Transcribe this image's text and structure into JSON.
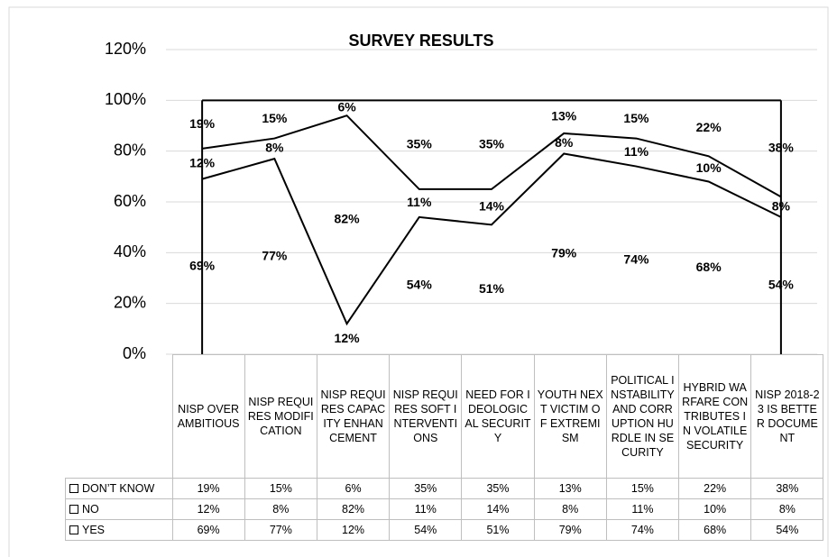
{
  "chart_data": {
    "type": "stacked_area",
    "title": "SURVEY RESULTS",
    "categories": [
      "NISP OVER AMBITIOUS",
      "NISP REQUIRES MODIFICATION",
      "NISP REQUIRES CAPACITY ENHANCEMENT",
      "NISP REQUIRES SOFT INTERVENTIONS",
      "NEED FOR IDEOLOGICAL SECURITY",
      "YOUTH NEXT VICTIM OF EXTREMISM",
      "POLITICAL INSTABILITY AND CORRUPTION HURDLE IN SECURITY",
      "HYBRID WARFARE CONTRIBUTES IN VOLATILE SECURITY",
      "NISP 2018-23 IS BETTER DOCUMENT"
    ],
    "series": [
      {
        "name": "YES",
        "color": "#000000",
        "values": [
          69,
          77,
          12,
          54,
          51,
          79,
          74,
          68,
          54
        ],
        "value_labels": [
          "69%",
          "77%",
          "12%",
          "54%",
          "51%",
          "79%",
          "74%",
          "68%",
          "54%"
        ]
      },
      {
        "name": "NO",
        "color": "#000000",
        "values": [
          12,
          8,
          82,
          11,
          14,
          8,
          11,
          10,
          8
        ],
        "value_labels": [
          "12%",
          "8%",
          "82%",
          "11%",
          "14%",
          "8%",
          "11%",
          "10%",
          "8%"
        ]
      },
      {
        "name": "DON’T KNOW",
        "color": "#000000",
        "values": [
          19,
          15,
          6,
          35,
          35,
          13,
          15,
          22,
          38
        ],
        "value_labels": [
          "19%",
          "15%",
          "6%",
          "35%",
          "35%",
          "13%",
          "15%",
          "22%",
          "38%"
        ]
      }
    ],
    "ylim": [
      0,
      120
    ],
    "yticks": [
      {
        "value": 0,
        "label": "0%"
      },
      {
        "value": 20,
        "label": "20%"
      },
      {
        "value": 40,
        "label": "40%"
      },
      {
        "value": 60,
        "label": "60%"
      },
      {
        "value": 80,
        "label": "80%"
      },
      {
        "value": 100,
        "label": "100%"
      },
      {
        "value": 120,
        "label": "120%"
      }
    ],
    "grid": true,
    "data_table": true
  }
}
